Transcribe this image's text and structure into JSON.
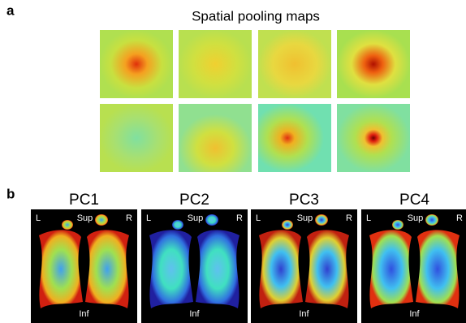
{
  "panel_a": {
    "label": "a",
    "title": "Spatial pooling maps"
  },
  "panel_b": {
    "label": "b",
    "maps": [
      {
        "title": "PC1",
        "left": "L",
        "top": "Sup",
        "right": "R",
        "bottom": "Inf"
      },
      {
        "title": "PC2",
        "left": "L",
        "top": "Sup",
        "right": "R",
        "bottom": "Inf"
      },
      {
        "title": "PC3",
        "left": "L",
        "top": "Sup",
        "right": "R",
        "bottom": "Inf"
      },
      {
        "title": "PC4",
        "left": "L",
        "top": "Sup",
        "right": "R",
        "bottom": "Inf"
      }
    ]
  }
}
